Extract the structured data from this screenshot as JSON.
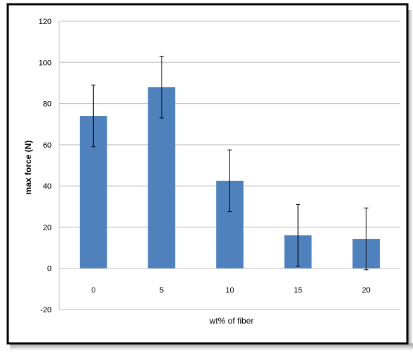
{
  "chart_data": {
    "type": "bar",
    "title": "",
    "xlabel": "wt% of fiber",
    "ylabel": "max force (N)",
    "ylim": [
      -20,
      120
    ],
    "yticks": [
      -20,
      0,
      20,
      40,
      60,
      80,
      100,
      120
    ],
    "grid": true,
    "legend": "none",
    "categories": [
      "0",
      "5",
      "10",
      "15",
      "20"
    ],
    "series": [
      {
        "values": [
          74,
          88,
          42.5,
          16,
          14.3
        ],
        "error": [
          15,
          15,
          15,
          15,
          15
        ],
        "color": "#4f81bd"
      }
    ]
  }
}
